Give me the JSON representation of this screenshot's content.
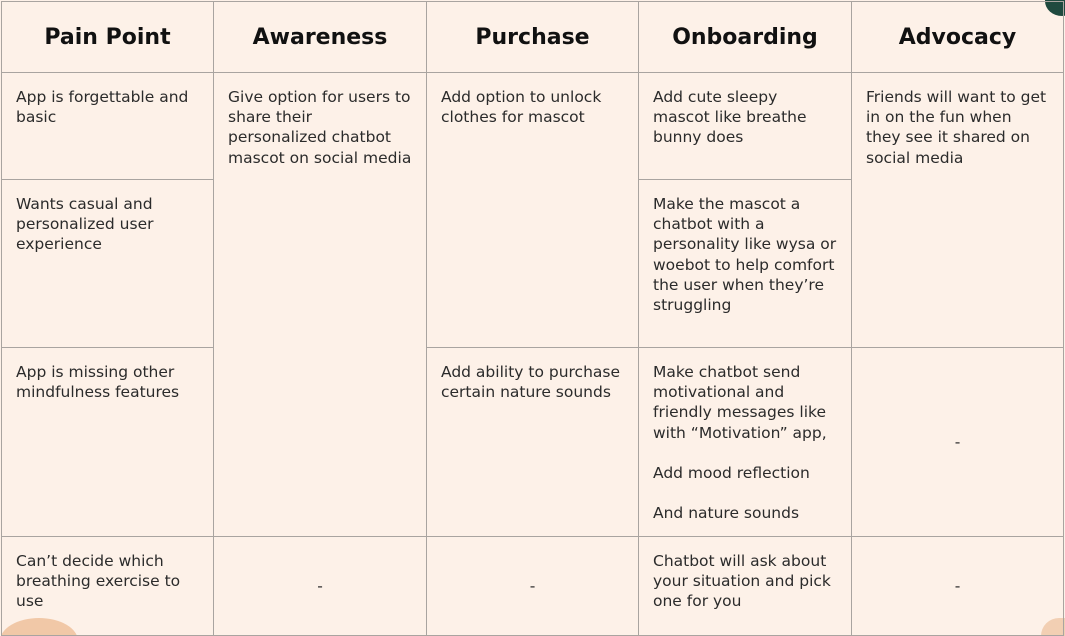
{
  "headers": [
    "Pain Point",
    "Awareness",
    "Purchase",
    "Onboarding",
    "Advocacy"
  ],
  "cells": {
    "pain_1": "App is forgettable and basic",
    "pain_2": "Wants casual and personalized user experience",
    "pain_3": "App is missing other mindfulness features",
    "pain_4": "Can’t decide which breathing exercise to use",
    "awareness_1": "Give option for users to share their personalized chatbot mascot on social media",
    "awareness_4": "-",
    "purchase_1": "Add option to unlock clothes for mascot",
    "purchase_3": "Add ability to purchase certain nature sounds",
    "purchase_4": "-",
    "onboarding_1": "Add cute sleepy mascot like breathe bunny does",
    "onboarding_2": "Make the mascot a chatbot with a personality like wysa or woebot to help comfort the user when they’re struggling",
    "onboarding_3": "Make chatbot send motivational and friendly messages like with “Motivation” app,\n\nAdd mood reflection\n\nAnd nature sounds",
    "onboarding_4": "Chatbot will ask about your situation and pick one for you",
    "advocacy_1": "Friends will want to get in on the fun when they see it shared on social media",
    "advocacy_3": "-",
    "advocacy_4": "-"
  },
  "colors": {
    "background": "#fdf1e8",
    "border": "#a9a4a0",
    "accent_dark": "#1f4a3f",
    "accent_peach": "#f1c8a7"
  }
}
